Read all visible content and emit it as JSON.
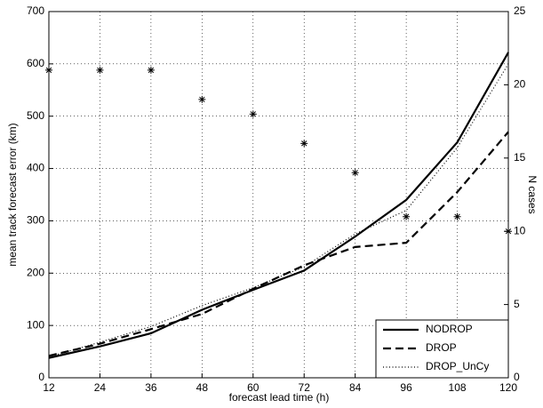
{
  "chart_data": {
    "type": "line",
    "x_label": "forecast lead time (h)",
    "y_label": "mean track forecast error (km)",
    "y2_label": "N cases",
    "x": [
      12,
      24,
      36,
      48,
      60,
      72,
      84,
      96,
      108,
      120
    ],
    "xlim": [
      12,
      120
    ],
    "xticks": [
      12,
      24,
      36,
      48,
      60,
      72,
      84,
      96,
      108,
      120
    ],
    "ylim": [
      0,
      700
    ],
    "yticks": [
      0,
      100,
      200,
      300,
      400,
      500,
      600,
      700
    ],
    "y2lim": [
      0,
      25
    ],
    "y2ticks": [
      0,
      5,
      10,
      15,
      20,
      25
    ],
    "grid": true,
    "legend": "lower right",
    "series": [
      {
        "name": "NODROP",
        "color": "#000000",
        "dash": "solid",
        "values": [
          38,
          60,
          85,
          130,
          168,
          205,
          270,
          340,
          450,
          622
        ]
      },
      {
        "name": "DROP",
        "color": "#000000",
        "dash": "dashed",
        "values": [
          42,
          65,
          93,
          122,
          170,
          215,
          250,
          258,
          355,
          470
        ]
      },
      {
        "name": "DROP_UnCy",
        "color": "#000000",
        "dash": "dotted",
        "values": [
          40,
          68,
          98,
          138,
          172,
          212,
          275,
          320,
          440,
          600
        ]
      }
    ],
    "y2_points": {
      "axis": "y2",
      "marker": "asterisk",
      "color": "#000000",
      "values": [
        21,
        21,
        21,
        19,
        18,
        16,
        14,
        11,
        11,
        10
      ]
    }
  }
}
